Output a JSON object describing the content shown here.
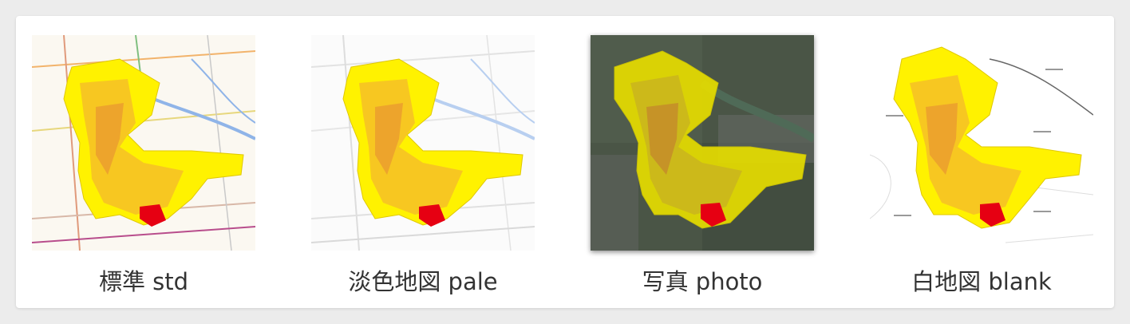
{
  "colors": {
    "region_fill": "#fff200",
    "region_orange": "#f4a72a",
    "highlight": "#e60012",
    "photo_bg": "#4a5546",
    "river_blue": "#8fb4e8"
  },
  "basemaps": [
    {
      "id": "std",
      "label": "標準 std"
    },
    {
      "id": "pale",
      "label": "淡色地図 pale"
    },
    {
      "id": "photo",
      "label": "写真 photo"
    },
    {
      "id": "blank",
      "label": "白地図 blank"
    }
  ]
}
